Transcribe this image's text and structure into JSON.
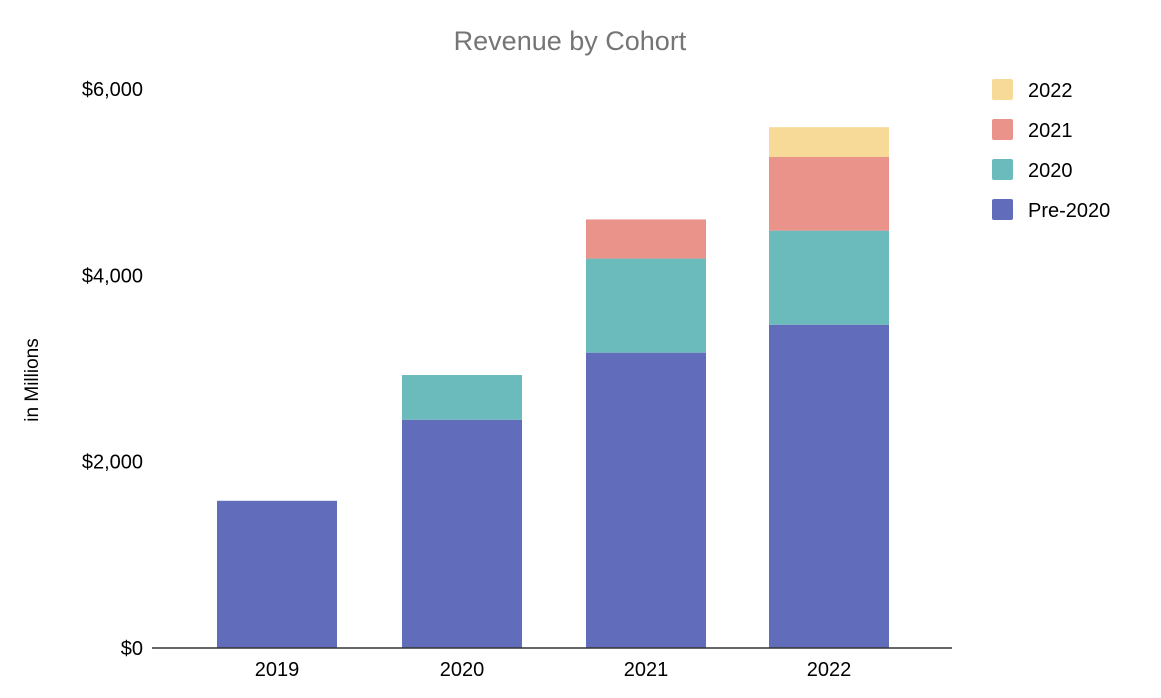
{
  "chart_data": {
    "type": "bar",
    "stacked": true,
    "title": "Revenue by Cohort",
    "xlabel": "",
    "ylabel": "in Millions",
    "categories": [
      "2019",
      "2020",
      "2021",
      "2022"
    ],
    "ylim": [
      0,
      6000
    ],
    "yticks": [
      0,
      2000,
      4000,
      6000
    ],
    "ytick_labels": [
      "$0",
      "$2,000",
      "$4,000",
      "$6,000"
    ],
    "grid": false,
    "legend_position": "right",
    "series": [
      {
        "name": "Pre-2020",
        "color": "#616cbb",
        "values": [
          1580,
          2450,
          3170,
          3470
        ]
      },
      {
        "name": "2020",
        "color": "#6cbbbc",
        "values": [
          0,
          480,
          1010,
          1010
        ]
      },
      {
        "name": "2021",
        "color": "#ea938b",
        "values": [
          0,
          0,
          420,
          790
        ]
      },
      {
        "name": "2022",
        "color": "#f7da98",
        "values": [
          0,
          0,
          0,
          320
        ]
      }
    ]
  }
}
